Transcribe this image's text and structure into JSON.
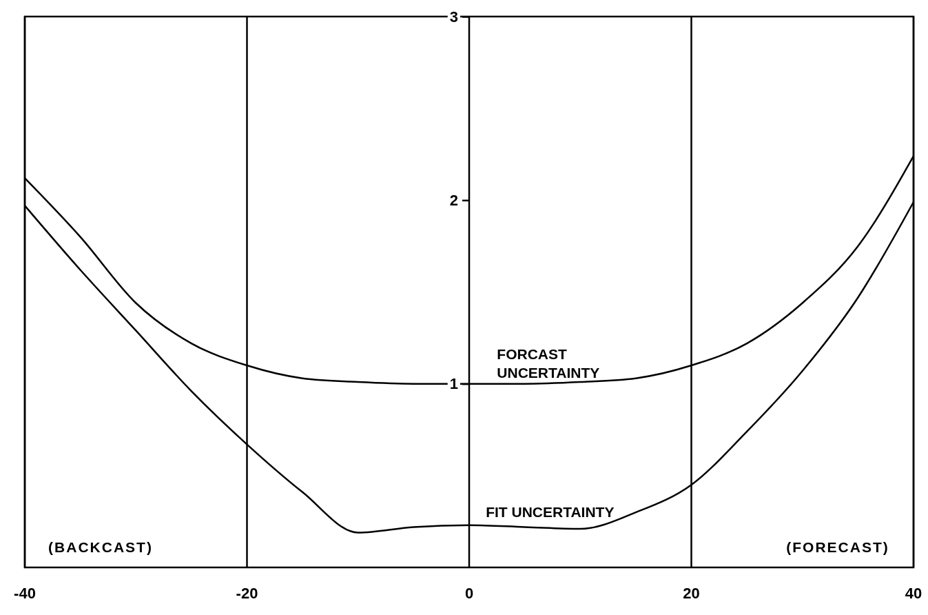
{
  "chart_data": {
    "type": "line",
    "x": [
      -40,
      -35,
      -30,
      -25,
      -20,
      -15,
      -10,
      -5,
      0,
      5,
      10,
      15,
      20,
      25,
      30,
      35,
      40
    ],
    "series": [
      {
        "name": "FORCAST UNCERTAINTY",
        "color": "#000000",
        "values": [
          2.12,
          1.8,
          1.44,
          1.22,
          1.1,
          1.03,
          1.01,
          1.0,
          1.0,
          1.0,
          1.01,
          1.03,
          1.1,
          1.22,
          1.44,
          1.75,
          2.24
        ]
      },
      {
        "name": "FIT UNCERTAINTY",
        "color": "#000000",
        "values": [
          1.97,
          1.62,
          1.29,
          0.96,
          0.67,
          0.41,
          0.19,
          0.22,
          0.23,
          0.22,
          0.21,
          0.3,
          0.45,
          0.74,
          1.07,
          1.47,
          1.99
        ]
      }
    ],
    "xlim": [
      -40,
      40
    ],
    "xticks": [
      -40,
      -20,
      0,
      20,
      40
    ],
    "ylim": [
      0,
      3
    ],
    "yticks": [
      1,
      2,
      3
    ],
    "annotations": [
      "(BACKCAST)",
      "(FORECAST)"
    ],
    "grid": "x",
    "marker": "none",
    "line_style": "solid"
  }
}
